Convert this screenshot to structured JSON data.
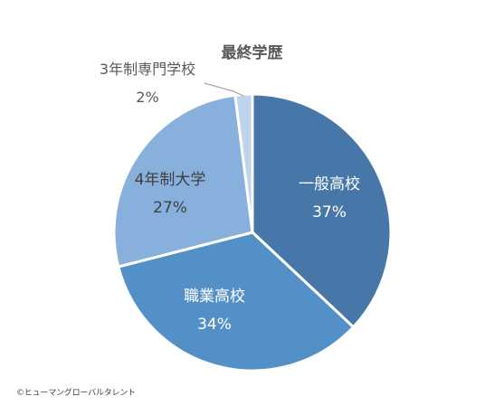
{
  "chart_data": {
    "type": "pie",
    "title": "最終学歴",
    "slices": [
      {
        "label": "一般高校",
        "value": 37,
        "value_label": "37%",
        "color": "#4677a8"
      },
      {
        "label": "職業高校",
        "value": 34,
        "value_label": "34%",
        "color": "#5490c8"
      },
      {
        "label": "4年制大学",
        "value": 27,
        "value_label": "27%",
        "color": "#88b0dc"
      },
      {
        "label": "3年制専門学校",
        "value": 2,
        "value_label": "2%",
        "color": "#bfd3ec"
      }
    ]
  },
  "footer": {
    "copyright": "©ヒューマングローバルタレント"
  }
}
